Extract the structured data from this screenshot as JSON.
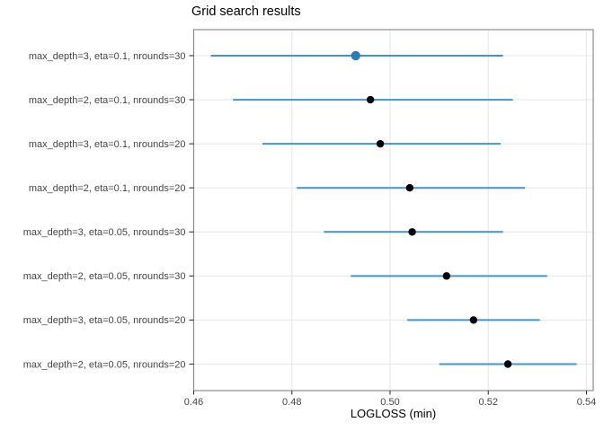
{
  "chart_data": {
    "type": "scatter",
    "variant": "horizontal dot plot with min/max range lines (error bars)",
    "title": "Grid search results",
    "xlabel": "LOGLOSS (min)",
    "ylabel": "",
    "xlim": [
      0.46,
      0.54
    ],
    "x_ticks": [
      {
        "value": 0.46,
        "label": "0.46"
      },
      {
        "value": 0.48,
        "label": "0.48"
      },
      {
        "value": 0.5,
        "label": "0.50"
      },
      {
        "value": 0.52,
        "label": "0.52"
      },
      {
        "value": 0.54,
        "label": "0.54"
      }
    ],
    "grid": "major gridlines on, white panel, gray border (theme_bw style)",
    "legend_position": "none",
    "rows": [
      {
        "label": "max_depth=3, eta=0.1, nrounds=30",
        "min": 0.4635,
        "value": 0.493,
        "max": 0.523,
        "highlighted": true
      },
      {
        "label": "max_depth=2, eta=0.1, nrounds=30",
        "min": 0.468,
        "value": 0.496,
        "max": 0.525,
        "highlighted": false
      },
      {
        "label": "max_depth=3, eta=0.1, nrounds=20",
        "min": 0.474,
        "value": 0.498,
        "max": 0.5225,
        "highlighted": false
      },
      {
        "label": "max_depth=2, eta=0.1, nrounds=20",
        "min": 0.481,
        "value": 0.504,
        "max": 0.5275,
        "highlighted": false
      },
      {
        "label": "max_depth=3, eta=0.05, nrounds=30",
        "min": 0.4865,
        "value": 0.5045,
        "max": 0.523,
        "highlighted": false
      },
      {
        "label": "max_depth=2, eta=0.05, nrounds=30",
        "min": 0.492,
        "value": 0.5115,
        "max": 0.532,
        "highlighted": false
      },
      {
        "label": "max_depth=3, eta=0.05, nrounds=20",
        "min": 0.5035,
        "value": 0.517,
        "max": 0.5305,
        "highlighted": false
      },
      {
        "label": "max_depth=2, eta=0.05, nrounds=20",
        "min": 0.51,
        "value": 0.524,
        "max": 0.538,
        "highlighted": false
      }
    ],
    "colors": {
      "range_line": "#4694c3",
      "point": "#000000",
      "highlight_point": "#2d7cb2",
      "grid_line": "#e7e7e7",
      "panel_border": "#8c8c8c",
      "tick_mark": "#333333",
      "tick_label": "#444444",
      "title": "#000000"
    }
  }
}
